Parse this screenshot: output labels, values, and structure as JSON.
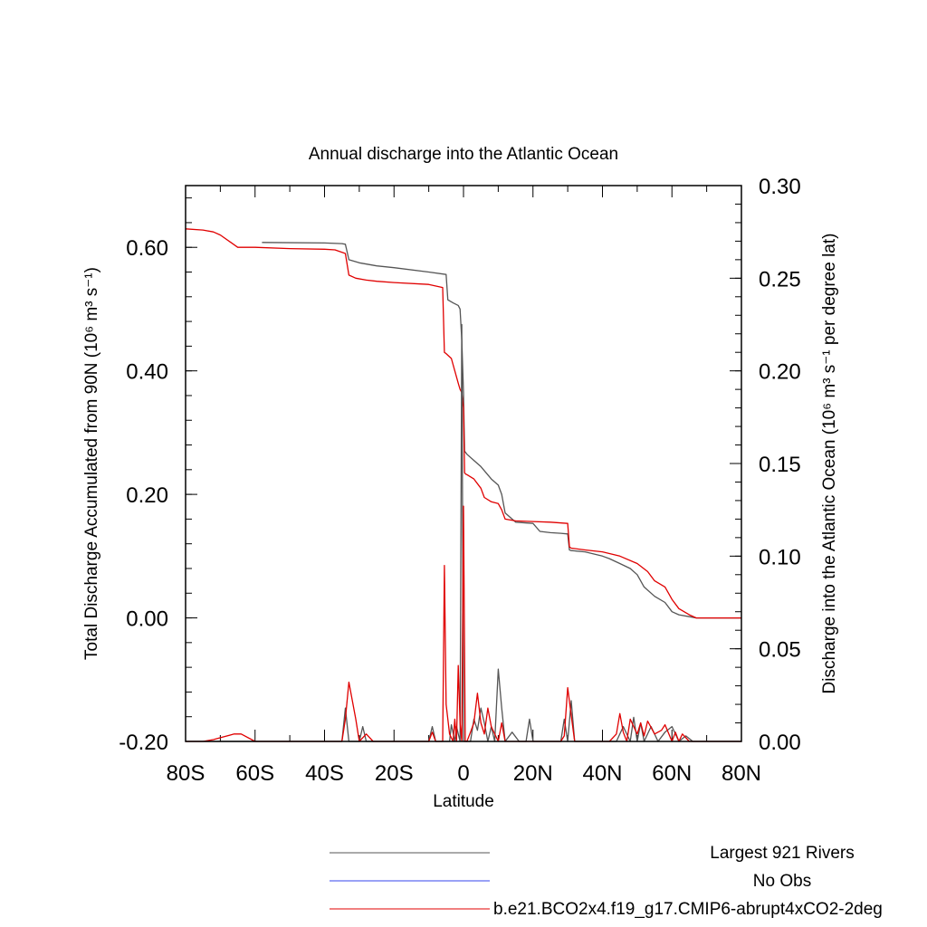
{
  "chart_data": {
    "type": "line",
    "title": "Annual discharge into the Atlantic Ocean",
    "xlabel": "Latitude",
    "ylabel_left": "Total Discharge Accumulated from 90N (10⁶ m³ s⁻¹)",
    "ylabel_right": "Discharge into the Atlantic Ocean (10⁶ m³ s⁻¹ per degree lat)",
    "xlim": [
      -80,
      80
    ],
    "ylim_left": [
      -0.2,
      0.7
    ],
    "ylim_right": [
      0.0,
      0.3
    ],
    "x_ticks": [
      {
        "value": -80,
        "label": "80S"
      },
      {
        "value": -60,
        "label": "60S"
      },
      {
        "value": -40,
        "label": "40S"
      },
      {
        "value": -20,
        "label": "20S"
      },
      {
        "value": 0,
        "label": "0"
      },
      {
        "value": 20,
        "label": "20N"
      },
      {
        "value": 40,
        "label": "40N"
      },
      {
        "value": 60,
        "label": "60N"
      },
      {
        "value": 80,
        "label": "80N"
      }
    ],
    "y_ticks_left": [
      {
        "value": -0.2,
        "label": "-0.20"
      },
      {
        "value": 0.0,
        "label": "0.00"
      },
      {
        "value": 0.2,
        "label": "0.20"
      },
      {
        "value": 0.4,
        "label": "0.40"
      },
      {
        "value": 0.6,
        "label": "0.60"
      }
    ],
    "y_ticks_right": [
      {
        "value": 0.0,
        "label": "0.00"
      },
      {
        "value": 0.05,
        "label": "0.05"
      },
      {
        "value": 0.1,
        "label": "0.10"
      },
      {
        "value": 0.15,
        "label": "0.15"
      },
      {
        "value": 0.2,
        "label": "0.20"
      },
      {
        "value": 0.25,
        "label": "0.25"
      },
      {
        "value": 0.3,
        "label": "0.30"
      }
    ],
    "series": [
      {
        "name": "Largest 921 Rivers",
        "color": "#555555",
        "axis": "left",
        "x": [
          -58,
          -40,
          -35,
          -34,
          -33,
          -30,
          -25,
          -20,
          -10,
          -5,
          -4.5,
          -3,
          -1.5,
          -1,
          -0.5,
          0,
          0.3,
          0.6,
          1,
          3,
          5,
          8,
          10,
          11,
          12,
          15,
          20,
          22,
          25,
          28,
          30,
          30.5,
          31,
          35,
          40,
          42,
          45,
          48,
          50,
          52,
          55,
          58,
          60,
          62,
          65,
          67,
          70,
          75,
          80
        ],
        "y": [
          0.608,
          0.607,
          0.606,
          0.605,
          0.58,
          0.575,
          0.57,
          0.567,
          0.56,
          0.556,
          0.515,
          0.51,
          0.506,
          0.5,
          0.45,
          0.365,
          0.27,
          0.268,
          0.265,
          0.255,
          0.245,
          0.225,
          0.215,
          0.2,
          0.17,
          0.155,
          0.153,
          0.14,
          0.138,
          0.137,
          0.136,
          0.11,
          0.109,
          0.107,
          0.1,
          0.096,
          0.088,
          0.08,
          0.07,
          0.05,
          0.035,
          0.025,
          0.01,
          0.005,
          0.002,
          0.0,
          0.0,
          0.0,
          0.0
        ]
      },
      {
        "name": "No Obs",
        "color": "#3344ee",
        "axis": "left",
        "x": [],
        "y": []
      },
      {
        "name": "b.e21.BCO2x4.f19_g17.CMIP6-abrupt4xCO2-2deg",
        "color": "#e00000",
        "axis": "left",
        "x": [
          -80,
          -75,
          -72,
          -70,
          -65,
          -60,
          -50,
          -40,
          -37,
          -34,
          -33,
          -31,
          -28,
          -25,
          -20,
          -10,
          -6,
          -5.5,
          -5,
          -3.5,
          -2.5,
          -1.5,
          -1,
          -0.5,
          0,
          0.3,
          0.6,
          1,
          3,
          5,
          6,
          8,
          10,
          11,
          12,
          15,
          20,
          25,
          30,
          30.5,
          31,
          35,
          40,
          45,
          50,
          53,
          55,
          58,
          60,
          62,
          65,
          67,
          70,
          75,
          80
        ],
        "y": [
          0.63,
          0.628,
          0.625,
          0.62,
          0.6,
          0.6,
          0.598,
          0.597,
          0.596,
          0.59,
          0.555,
          0.55,
          0.547,
          0.545,
          0.543,
          0.54,
          0.535,
          0.43,
          0.428,
          0.42,
          0.4,
          0.38,
          0.37,
          0.365,
          0.34,
          0.235,
          0.233,
          0.232,
          0.225,
          0.21,
          0.195,
          0.188,
          0.185,
          0.175,
          0.16,
          0.157,
          0.156,
          0.155,
          0.153,
          0.115,
          0.113,
          0.11,
          0.107,
          0.1,
          0.088,
          0.075,
          0.06,
          0.05,
          0.03,
          0.015,
          0.005,
          0.0,
          0.0,
          0.0,
          0.0
        ]
      },
      {
        "name": "Largest 921 Rivers",
        "color": "#555555",
        "axis": "right",
        "x": [
          -80,
          -35,
          -34,
          -33,
          -32,
          -30,
          -29,
          -28,
          -10,
          -9,
          -8,
          -7,
          -4,
          -3.5,
          -2.5,
          -2,
          -1,
          -0.5,
          0,
          0.5,
          1,
          2,
          3,
          4,
          5,
          6,
          7,
          8,
          9,
          10,
          11,
          12,
          14,
          16,
          18,
          19,
          20,
          22,
          28,
          29,
          30,
          31,
          32,
          40,
          44,
          46,
          48,
          49,
          50,
          51,
          52,
          54,
          56,
          58,
          60,
          62,
          64,
          66,
          70,
          80
        ],
        "y": [
          0.0,
          0.0,
          0.018,
          0.0,
          0.0,
          0.0,
          0.008,
          0.0,
          0.0,
          0.008,
          0.0,
          0.0,
          0.0,
          0.009,
          0.0,
          0.008,
          0.0,
          0.225,
          0.0,
          0.0,
          0.0,
          0.0,
          0.012,
          0.006,
          0.018,
          0.01,
          0.0,
          0.008,
          0.0,
          0.039,
          0.018,
          0.0,
          0.005,
          0.0,
          0.0,
          0.012,
          0.0,
          0.0,
          0.0,
          0.012,
          0.0,
          0.022,
          0.0,
          0.0,
          0.0,
          0.008,
          0.0,
          0.013,
          0.0,
          0.01,
          0.0,
          0.008,
          0.0,
          0.005,
          0.008,
          0.0,
          0.003,
          0.0,
          0.0,
          0.0
        ]
      },
      {
        "name": "b.e21.BCO2x4.f19_g17.CMIP6-abrupt4xCO2-2deg",
        "color": "#e00000",
        "axis": "right",
        "x": [
          -80,
          -75,
          -72,
          -70,
          -66,
          -64,
          -60,
          -50,
          -40,
          -35,
          -34,
          -33,
          -31,
          -30,
          -28,
          -26,
          -20,
          -10,
          -9,
          -8,
          -7,
          -6,
          -5.5,
          -5,
          -4,
          -3,
          -2.5,
          -2,
          -1.5,
          -1,
          -0.5,
          0,
          0.5,
          1,
          2,
          3,
          4,
          5,
          6,
          7,
          8,
          10,
          11,
          12,
          15,
          20,
          25,
          28,
          29,
          30,
          31,
          32,
          35,
          40,
          42,
          44,
          45,
          46,
          47,
          48,
          49,
          50,
          51,
          52,
          53,
          55,
          57,
          58,
          60,
          61,
          62,
          63,
          65,
          70,
          80
        ],
        "y": [
          0.0,
          0.0,
          0.001,
          0.002,
          0.004,
          0.004,
          0.0,
          0.0,
          0.0,
          0.0,
          0.012,
          0.032,
          0.012,
          0.0,
          0.004,
          0.0,
          0.0,
          0.0,
          0.005,
          0.0,
          0.0,
          0.0,
          0.095,
          0.02,
          0.004,
          0.0,
          0.012,
          0.0,
          0.041,
          0.01,
          0.0,
          0.127,
          0.0,
          0.0,
          0.005,
          0.01,
          0.026,
          0.01,
          0.004,
          0.018,
          0.008,
          0.0,
          0.01,
          0.0,
          0.0,
          0.0,
          0.0,
          0.0,
          0.003,
          0.029,
          0.014,
          0.0,
          0.0,
          0.0,
          0.0,
          0.004,
          0.015,
          0.005,
          0.0,
          0.012,
          0.008,
          0.004,
          0.01,
          0.003,
          0.011,
          0.004,
          0.006,
          0.009,
          0.0,
          0.005,
          0.0,
          0.004,
          0.0,
          0.0,
          0.0
        ]
      }
    ],
    "legend_placement": "bottom-center",
    "grid": false
  }
}
